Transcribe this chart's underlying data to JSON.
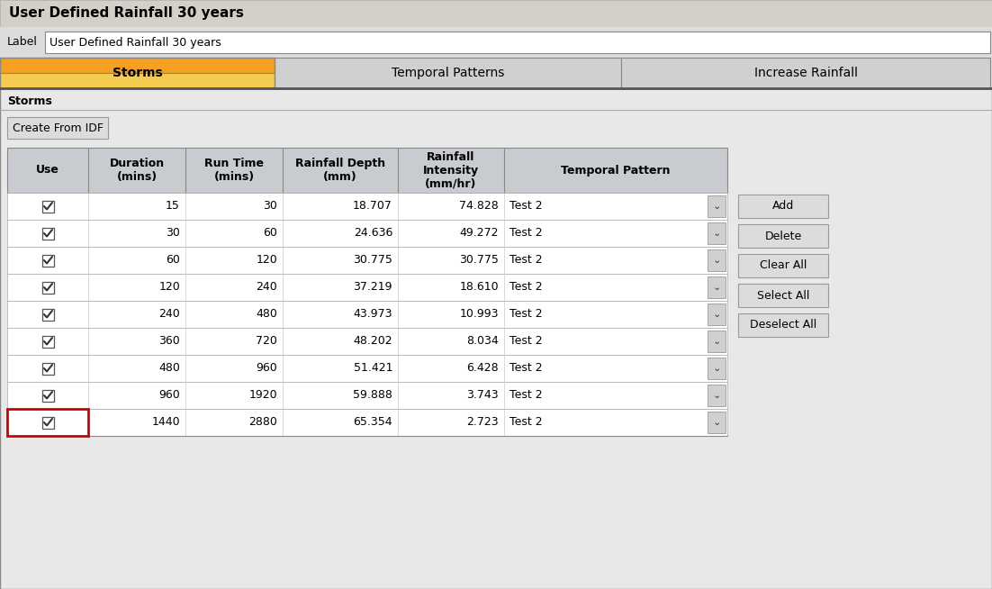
{
  "title": "User Defined Rainfall 30 years",
  "label_text": "User Defined Rainfall 30 years",
  "col_headers": [
    "Use",
    "Duration\n(mins)",
    "Run Time\n(mins)",
    "Rainfall Depth\n(mm)",
    "Rainfall\nIntensity\n(mm/hr)",
    "Temporal Pattern"
  ],
  "rows": [
    [
      15,
      30,
      "18.707",
      "74.828",
      "Test 2"
    ],
    [
      30,
      60,
      "24.636",
      "49.272",
      "Test 2"
    ],
    [
      60,
      120,
      "30.775",
      "30.775",
      "Test 2"
    ],
    [
      120,
      240,
      "37.219",
      "18.610",
      "Test 2"
    ],
    [
      240,
      480,
      "43.973",
      "10.993",
      "Test 2"
    ],
    [
      360,
      720,
      "48.202",
      "8.034",
      "Test 2"
    ],
    [
      480,
      960,
      "51.421",
      "6.428",
      "Test 2"
    ],
    [
      960,
      1920,
      "59.888",
      "3.743",
      "Test 2"
    ],
    [
      1440,
      2880,
      "65.354",
      "2.723",
      "Test 2"
    ]
  ],
  "side_buttons": [
    "Add",
    "Delete",
    "Clear All",
    "Select All",
    "Deselect All"
  ],
  "bg_color": "#dcdcdc",
  "title_bar_color": "#d4d0c8",
  "tab_orange_top": "#f5a020",
  "tab_orange_bot": "#f5cc50",
  "tab_inactive_color": "#d0d0d0",
  "tab_border_color": "#888888",
  "panel_bg": "#e8e8e8",
  "header_bg": "#c8ccd0",
  "row_bg": "#ffffff",
  "button_color": "#dcdcdc",
  "button_border": "#aaaaaa",
  "last_row_border": "#cc0000",
  "cell_fontsize": 9,
  "header_fontsize": 9
}
